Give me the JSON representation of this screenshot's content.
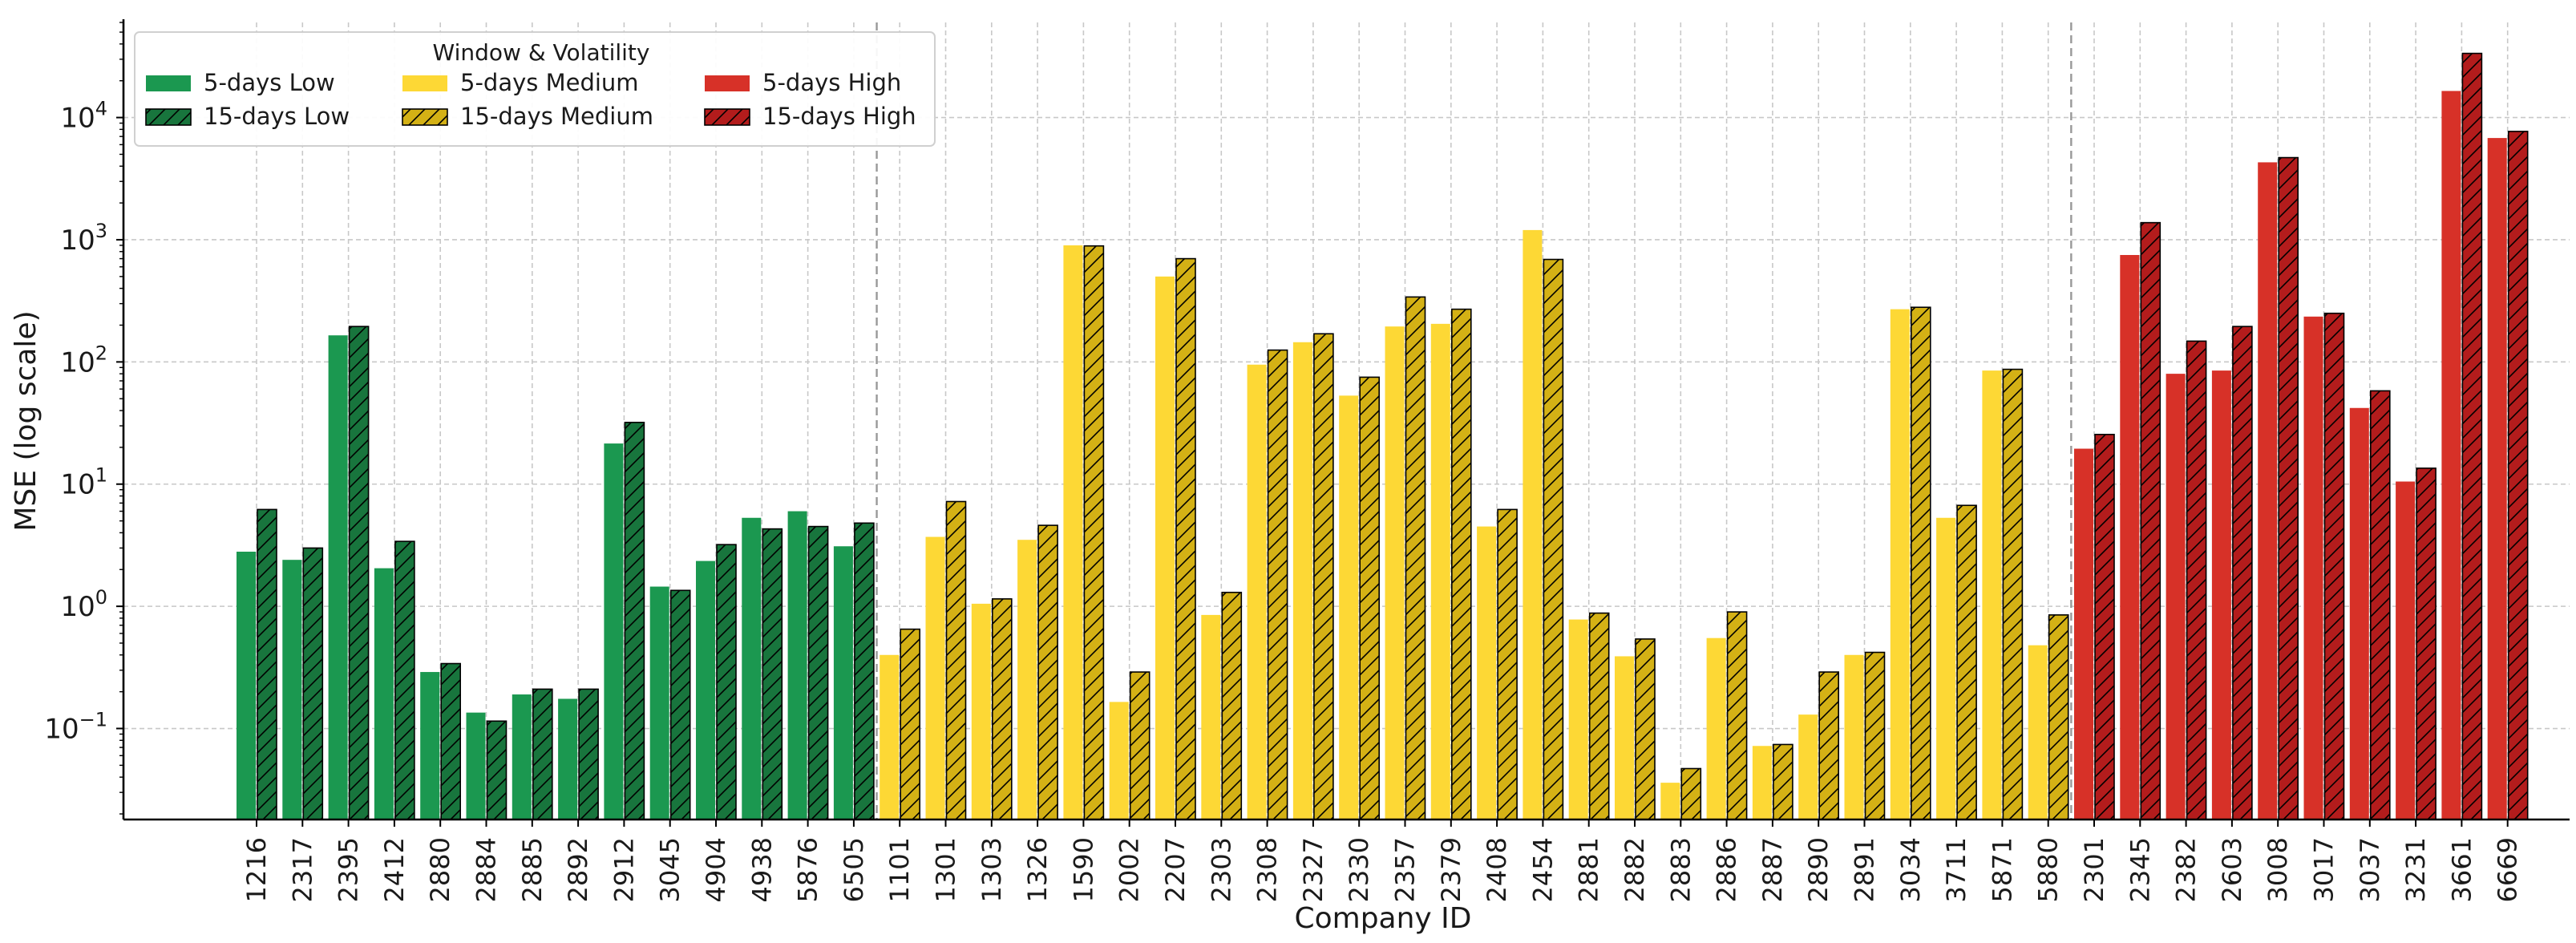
{
  "chart_data": {
    "type": "bar",
    "xlabel": "Company ID",
    "ylabel": "MSE (log scale)",
    "yscale": "log",
    "ylim": [
      0.018,
      60000
    ],
    "yticks": [
      {
        "value": 0.1,
        "base": "10",
        "exp": "−1"
      },
      {
        "value": 1,
        "base": "10",
        "exp": "0"
      },
      {
        "value": 10,
        "base": "10",
        "exp": "1"
      },
      {
        "value": 100,
        "base": "10",
        "exp": "2"
      },
      {
        "value": 1000,
        "base": "10",
        "exp": "3"
      },
      {
        "value": 10000,
        "base": "10",
        "exp": "4"
      }
    ],
    "grid": true,
    "legend": {
      "title": "Window & Volatility",
      "placement": "top-left",
      "entries": [
        {
          "label": "5-days Low",
          "window": "5",
          "vol": "low"
        },
        {
          "label": "15-days Low",
          "window": "15",
          "vol": "low"
        },
        {
          "label": "5-days Medium",
          "window": "5",
          "vol": "medium"
        },
        {
          "label": "15-days Medium",
          "window": "15",
          "vol": "medium"
        },
        {
          "label": "5-days High",
          "window": "5",
          "vol": "high"
        },
        {
          "label": "15-days High",
          "window": "15",
          "vol": "high"
        }
      ]
    },
    "colors": {
      "low_5": "#1b9850",
      "low_15": "#18753d",
      "medium_5": "#fdd835",
      "medium_15": "#d4b115",
      "high_5": "#d73128",
      "high_15": "#b31c1c",
      "hatch": "#000000",
      "grid": "#c8c8c8",
      "separator": "#999999"
    },
    "group_separators_after": [
      "6505",
      "5880"
    ],
    "categories": [
      "1216",
      "2317",
      "2395",
      "2412",
      "2880",
      "2884",
      "2885",
      "2892",
      "2912",
      "3045",
      "4904",
      "4938",
      "5876",
      "6505",
      "1101",
      "1301",
      "1303",
      "1326",
      "1590",
      "2002",
      "2207",
      "2303",
      "2308",
      "2327",
      "2330",
      "2357",
      "2379",
      "2408",
      "2454",
      "2881",
      "2882",
      "2883",
      "2886",
      "2887",
      "2890",
      "2891",
      "3034",
      "3711",
      "5871",
      "5880",
      "2301",
      "2345",
      "2382",
      "2603",
      "3008",
      "3017",
      "3037",
      "3231",
      "3661",
      "6669"
    ],
    "volatility": [
      "low",
      "low",
      "low",
      "low",
      "low",
      "low",
      "low",
      "low",
      "low",
      "low",
      "low",
      "low",
      "low",
      "low",
      "medium",
      "medium",
      "medium",
      "medium",
      "medium",
      "medium",
      "medium",
      "medium",
      "medium",
      "medium",
      "medium",
      "medium",
      "medium",
      "medium",
      "medium",
      "medium",
      "medium",
      "medium",
      "medium",
      "medium",
      "medium",
      "medium",
      "medium",
      "medium",
      "medium",
      "medium",
      "high",
      "high",
      "high",
      "high",
      "high",
      "high",
      "high",
      "high",
      "high",
      "high"
    ],
    "series": [
      {
        "name": "5-days",
        "values": [
          2.8,
          2.4,
          165,
          2.05,
          0.29,
          0.135,
          0.19,
          0.175,
          21.5,
          1.45,
          2.35,
          5.3,
          6.0,
          3.1,
          0.4,
          3.7,
          1.05,
          3.5,
          900,
          0.165,
          500,
          0.85,
          95,
          145,
          53,
          195,
          205,
          4.5,
          1200,
          0.78,
          0.39,
          0.036,
          0.55,
          0.072,
          0.13,
          0.4,
          270,
          5.3,
          85,
          0.48,
          19.5,
          750,
          80,
          85,
          4300,
          235,
          42,
          10.5,
          16500,
          6800
        ]
      },
      {
        "name": "15-days",
        "values": [
          6.2,
          3.0,
          195,
          3.4,
          0.34,
          0.115,
          0.21,
          0.21,
          32,
          1.35,
          3.2,
          4.3,
          4.5,
          4.8,
          0.65,
          7.2,
          1.15,
          4.6,
          890,
          0.29,
          700,
          1.3,
          125,
          170,
          75,
          340,
          270,
          6.2,
          690,
          0.88,
          0.54,
          0.047,
          0.9,
          0.074,
          0.29,
          0.42,
          280,
          6.7,
          87,
          0.85,
          25.5,
          1380,
          148,
          195,
          4700,
          250,
          58,
          13.5,
          33500,
          7700
        ]
      }
    ]
  }
}
